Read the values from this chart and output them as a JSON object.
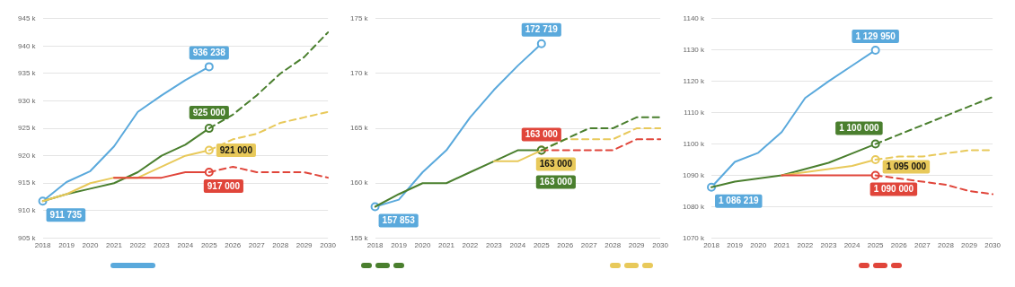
{
  "chart_data": [
    {
      "type": "line",
      "categories": [
        "2018",
        "2019",
        "2020",
        "2021",
        "2022",
        "2023",
        "2024",
        "2025",
        "2026",
        "2027",
        "2028",
        "2029",
        "2030"
      ],
      "ylim": [
        905000,
        945000
      ],
      "yticks": [
        {
          "value": 905000,
          "label": "905 k"
        },
        {
          "value": 910000,
          "label": "910 k"
        },
        {
          "value": 915000,
          "label": "915 k"
        },
        {
          "value": 920000,
          "label": "920 k"
        },
        {
          "value": 925000,
          "label": "925 k"
        },
        {
          "value": 930000,
          "label": "930 k"
        },
        {
          "value": 935000,
          "label": "935 k"
        },
        {
          "value": 940000,
          "label": "940 k"
        },
        {
          "value": 945000,
          "label": "945 k"
        }
      ],
      "grid": "y",
      "series": [
        {
          "color": "#4a7f2e",
          "line_style": "dashed",
          "values": [
            null,
            null,
            null,
            null,
            null,
            null,
            null,
            925000,
            927500,
            931000,
            935000,
            938000,
            942500
          ]
        },
        {
          "color": "#e8c95a",
          "line_style": "dashed",
          "values": [
            null,
            null,
            null,
            null,
            null,
            null,
            null,
            921000,
            923000,
            924000,
            926000,
            927000,
            928000
          ]
        },
        {
          "color": "#e0453a",
          "line_style": "dashed",
          "values": [
            null,
            null,
            null,
            null,
            null,
            null,
            null,
            917000,
            918000,
            917000,
            917000,
            917000,
            916000
          ]
        },
        {
          "color": "#e0453a",
          "line_style": "solid",
          "values": [
            null,
            null,
            null,
            916000,
            916000,
            916000,
            917000,
            917000,
            null,
            null,
            null,
            null,
            null
          ],
          "value_labels": [
            null,
            null,
            null,
            null,
            null,
            null,
            null,
            "917 000",
            null,
            null,
            null,
            null,
            null
          ]
        },
        {
          "color": "#e8c95a",
          "line_style": "solid",
          "values": [
            911735,
            913000,
            915000,
            916000,
            916000,
            918000,
            920000,
            921000,
            null,
            null,
            null,
            null,
            null
          ],
          "value_labels": [
            null,
            null,
            null,
            null,
            null,
            null,
            null,
            "921 000",
            null,
            null,
            null,
            null,
            null
          ]
        },
        {
          "color": "#4a7f2e",
          "line_style": "solid",
          "values": [
            911735,
            913000,
            914000,
            915000,
            917000,
            920000,
            922000,
            925000,
            null,
            null,
            null,
            null,
            null
          ],
          "value_labels": [
            null,
            null,
            null,
            null,
            null,
            null,
            null,
            "925 000",
            null,
            null,
            null,
            null,
            null
          ]
        },
        {
          "color": "#5aa9dc",
          "line_style": "solid",
          "values": [
            911735,
            915200,
            917200,
            921700,
            928000,
            931000,
            933800,
            936238,
            null,
            null,
            null,
            null,
            null
          ],
          "value_labels": [
            "911 735",
            null,
            null,
            null,
            null,
            null,
            null,
            "936 238",
            null,
            null,
            null,
            null,
            null
          ]
        }
      ]
    },
    {
      "type": "line",
      "categories": [
        "2018",
        "2019",
        "2020",
        "2021",
        "2022",
        "2023",
        "2024",
        "2025",
        "2026",
        "2027",
        "2028",
        "2029",
        "2030"
      ],
      "ylim": [
        155000,
        175000
      ],
      "yticks": [
        {
          "value": 155000,
          "label": "155 k"
        },
        {
          "value": 160000,
          "label": "160 k"
        },
        {
          "value": 165000,
          "label": "165 k"
        },
        {
          "value": 170000,
          "label": "170 k"
        },
        {
          "value": 175000,
          "label": "175 k"
        }
      ],
      "grid": "y",
      "series": [
        {
          "color": "#4a7f2e",
          "line_style": "dashed",
          "values": [
            null,
            null,
            null,
            null,
            null,
            null,
            null,
            163000,
            164000,
            165000,
            165000,
            166000,
            166000
          ]
        },
        {
          "color": "#e8c95a",
          "line_style": "dashed",
          "values": [
            null,
            null,
            null,
            null,
            null,
            null,
            null,
            163000,
            164000,
            164000,
            164000,
            165000,
            165000
          ]
        },
        {
          "color": "#e0453a",
          "line_style": "dashed",
          "values": [
            null,
            null,
            null,
            null,
            null,
            null,
            null,
            163000,
            163000,
            163000,
            163000,
            164000,
            164000
          ]
        },
        {
          "color": "#e8c95a",
          "line_style": "solid",
          "values": [
            null,
            null,
            null,
            null,
            null,
            162000,
            162000,
            163000,
            null,
            null,
            null,
            null,
            null
          ]
        },
        {
          "color": "#4a7f2e",
          "line_style": "solid",
          "values": [
            157853,
            159000,
            160000,
            160000,
            161000,
            162000,
            163000,
            163000,
            null,
            null,
            null,
            null,
            null
          ],
          "value_labels": [
            null,
            null,
            null,
            null,
            null,
            null,
            null,
            "163 000",
            null,
            null,
            null,
            null,
            null
          ]
        },
        {
          "color": "#e8c95a",
          "line_style": "solid",
          "marker": "circle",
          "values": [
            null,
            null,
            null,
            null,
            null,
            null,
            null,
            163000,
            null,
            null,
            null,
            null,
            null
          ],
          "value_labels": [
            null,
            null,
            null,
            null,
            null,
            null,
            null,
            "163 000",
            null,
            null,
            null,
            null,
            null
          ]
        },
        {
          "color": "#e0453a",
          "line_style": "solid",
          "marker": "circle",
          "values": [
            null,
            null,
            null,
            null,
            null,
            null,
            null,
            163000,
            null,
            null,
            null,
            null,
            null
          ],
          "value_labels": [
            null,
            null,
            null,
            null,
            null,
            null,
            null,
            "163 000",
            null,
            null,
            null,
            null,
            null
          ]
        },
        {
          "color": "#5aa9dc",
          "line_style": "solid",
          "values": [
            157853,
            158500,
            161000,
            163000,
            166000,
            168500,
            170700,
            172719,
            null,
            null,
            null,
            null,
            null
          ],
          "value_labels": [
            "157 853",
            null,
            null,
            null,
            null,
            null,
            null,
            "172 719",
            null,
            null,
            null,
            null,
            null
          ]
        }
      ]
    },
    {
      "type": "line",
      "categories": [
        "2018",
        "2019",
        "2020",
        "2021",
        "2022",
        "2023",
        "2024",
        "2025",
        "2026",
        "2027",
        "2028",
        "2029",
        "2030"
      ],
      "ylim": [
        1070000,
        1140000
      ],
      "yticks": [
        {
          "value": 1070000,
          "label": "1070 k"
        },
        {
          "value": 1080000,
          "label": "1080 k"
        },
        {
          "value": 1090000,
          "label": "1090 k"
        },
        {
          "value": 1100000,
          "label": "1100 k"
        },
        {
          "value": 1110000,
          "label": "1110 k"
        },
        {
          "value": 1120000,
          "label": "1120 k"
        },
        {
          "value": 1130000,
          "label": "1130 k"
        },
        {
          "value": 1140000,
          "label": "1140 k"
        }
      ],
      "grid": "y",
      "series": [
        {
          "color": "#4a7f2e",
          "line_style": "dashed",
          "values": [
            null,
            null,
            null,
            null,
            null,
            null,
            null,
            1100000,
            1103000,
            1106000,
            1109000,
            1112000,
            1115000
          ]
        },
        {
          "color": "#e8c95a",
          "line_style": "dashed",
          "values": [
            null,
            null,
            null,
            null,
            null,
            null,
            null,
            1095000,
            1096000,
            1096000,
            1097000,
            1098000,
            1098000
          ]
        },
        {
          "color": "#e0453a",
          "line_style": "dashed",
          "values": [
            null,
            null,
            null,
            null,
            null,
            null,
            null,
            1090000,
            1089000,
            1088000,
            1087000,
            1085000,
            1084000
          ]
        },
        {
          "color": "#e0453a",
          "line_style": "solid",
          "values": [
            null,
            null,
            null,
            1090000,
            1090000,
            1090000,
            1090000,
            1090000,
            null,
            null,
            null,
            null,
            null
          ],
          "value_labels": [
            null,
            null,
            null,
            null,
            null,
            null,
            null,
            "1 090 000",
            null,
            null,
            null,
            null,
            null
          ]
        },
        {
          "color": "#e8c95a",
          "line_style": "solid",
          "values": [
            null,
            null,
            null,
            1090000,
            1091000,
            1092000,
            1093000,
            1095000,
            null,
            null,
            null,
            null,
            null
          ],
          "value_labels": [
            null,
            null,
            null,
            null,
            null,
            null,
            null,
            "1 095 000",
            null,
            null,
            null,
            null,
            null
          ]
        },
        {
          "color": "#4a7f2e",
          "line_style": "solid",
          "values": [
            1086219,
            1088000,
            1089000,
            1090000,
            1092000,
            1094000,
            1097000,
            1100000,
            null,
            null,
            null,
            null,
            null
          ],
          "value_labels": [
            null,
            null,
            null,
            null,
            null,
            null,
            null,
            "1 100 000",
            null,
            null,
            null,
            null,
            null
          ]
        },
        {
          "color": "#5aa9dc",
          "line_style": "solid",
          "values": [
            1086219,
            1094300,
            1097200,
            1103800,
            1114700,
            1120000,
            1125000,
            1129950,
            null,
            null,
            null,
            null,
            null
          ],
          "value_labels": [
            "1 086 219",
            null,
            null,
            null,
            null,
            null,
            null,
            "1 129 950",
            null,
            null,
            null,
            null,
            null
          ]
        }
      ]
    }
  ]
}
